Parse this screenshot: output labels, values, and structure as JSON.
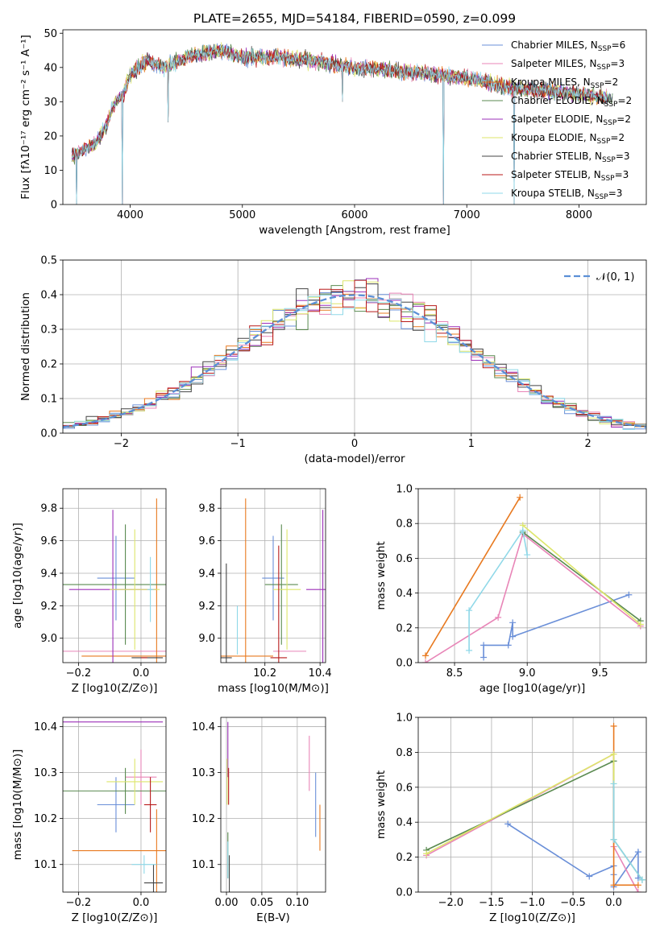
{
  "chart_data": [
    {
      "id": "spectrum",
      "type": "line",
      "title": "PLATE=2655, MJD=54184, FIBERID=0590, z=0.099",
      "xlabel": "wavelength [Angstrom, rest frame]",
      "ylabel": "Flux [fλ10⁻¹⁷ erg cm⁻² s⁻¹ A⁻¹]",
      "xlim": [
        3400,
        8600
      ],
      "ylim": [
        0,
        51
      ],
      "xticks": [
        4000,
        5000,
        6000,
        7000,
        8000
      ],
      "yticks": [
        0,
        10,
        20,
        30,
        40,
        50
      ],
      "grid": false,
      "legend_position": "top-right",
      "continuum_shape": {
        "x": [
          3480,
          3600,
          3700,
          3800,
          3850,
          3950,
          4000,
          4150,
          4300,
          4500,
          4800,
          5000,
          5300,
          5600,
          6000,
          6400,
          6700,
          7000,
          7400,
          7800,
          8300
        ],
        "y": [
          14,
          16,
          18,
          24,
          29,
          33,
          38,
          42,
          40,
          43,
          45,
          43,
          43,
          42,
          40,
          39,
          38,
          37,
          34,
          33,
          31
        ]
      },
      "absorption_dips": [
        {
          "x": 3930,
          "y": 0
        },
        {
          "x": 6790,
          "y": 0
        },
        {
          "x": 7420,
          "y": 0
        },
        {
          "x": 3520,
          "y": 0
        },
        {
          "x": 4340,
          "y": 24
        },
        {
          "x": 5890,
          "y": 30
        }
      ],
      "series": [
        {
          "name": "Chabrier MILES, N_SSP=6",
          "color": "#6a8fd8"
        },
        {
          "name": "Salpeter MILES, N_SSP=3",
          "color": "#e885b7"
        },
        {
          "name": "Kroupa MILES, N_SSP=2",
          "color": "#e8791f"
        },
        {
          "name": "Chabrier ELODIE, N_SSP=2",
          "color": "#5a8a50"
        },
        {
          "name": "Salpeter ELODIE, N_SSP=2",
          "color": "#9b2fb8"
        },
        {
          "name": "Kroupa ELODIE, N_SSP=2",
          "color": "#dde66a"
        },
        {
          "name": "Chabrier STELIB, N_SSP=3",
          "color": "#444444"
        },
        {
          "name": "Salpeter STELIB, N_SSP=3",
          "color": "#b81a1a"
        },
        {
          "name": "Kroupa STELIB, N_SSP=3",
          "color": "#8fd8e8"
        }
      ]
    },
    {
      "id": "residuals",
      "type": "line",
      "xlabel": "(data-model)/error",
      "ylabel": "Normed distribution",
      "xlim": [
        -2.5,
        2.5
      ],
      "ylim": [
        0,
        0.5
      ],
      "xticks": [
        -2,
        -1,
        0,
        1,
        2
      ],
      "yticks": [
        0.0,
        0.1,
        0.2,
        0.3,
        0.4,
        0.5
      ],
      "grid": true,
      "legend_position": "top-right",
      "legend": "𝒩(0, 1)",
      "bin_width": 0.1,
      "note_series_colors": "same order as spectrum legend"
    },
    {
      "id": "age_vs_Z",
      "type": "scatter",
      "xlabel": "Z [log10(Z/Z⊙)]",
      "ylabel": "age  [log10(age/yr)]",
      "xlim": [
        -0.25,
        0.08
      ],
      "ylim": [
        8.85,
        9.92
      ],
      "xticks": [
        -0.2,
        0.0
      ],
      "yticks": [
        9.0,
        9.2,
        9.4,
        9.6,
        9.8
      ],
      "grid": true,
      "points": [
        {
          "series": 0,
          "x": -0.08,
          "y": 9.37,
          "xerr": 0.06,
          "yerr": 0.26
        },
        {
          "series": 1,
          "x": 0.0,
          "y": 8.92,
          "xerr": 0.25,
          "yerr": 0.0
        },
        {
          "series": 2,
          "x": 0.05,
          "y": 8.89,
          "xerr": 0.24,
          "yerr": 0.97
        },
        {
          "series": 3,
          "x": -0.05,
          "y": 9.33,
          "xerr": 0.25,
          "yerr": 0.37
        },
        {
          "series": 4,
          "x": -0.09,
          "y": 9.3,
          "xerr": 0.14,
          "yerr": 0.49
        },
        {
          "series": 5,
          "x": -0.02,
          "y": 9.3,
          "xerr": 0.08,
          "yerr": 0.37
        },
        {
          "series": 6,
          "x": 0.02,
          "y": 8.88,
          "xerr": 0.05,
          "yerr": 0.0
        },
        {
          "series": 7,
          "x": 0.01,
          "y": 8.88,
          "xerr": 0.01,
          "yerr": 0.0
        },
        {
          "series": 8,
          "x": 0.03,
          "y": 9.3,
          "xerr": 0.01,
          "yerr": 0.2
        }
      ]
    },
    {
      "id": "age_vs_mass",
      "type": "scatter",
      "xlabel": "mass [log10(M/M⊙)]",
      "ylabel": "",
      "xlim": [
        10.04,
        10.42
      ],
      "ylim": [
        8.85,
        9.92
      ],
      "xticks": [
        10.2,
        10.4
      ],
      "yticks": [
        9.0,
        9.2,
        9.4,
        9.6,
        9.8
      ],
      "grid": true,
      "points": [
        {
          "series": 0,
          "x": 10.23,
          "y": 9.37,
          "xerr": 0.04,
          "yerr": 0.26
        },
        {
          "series": 1,
          "x": 10.29,
          "y": 8.92,
          "xerr": 0.06,
          "yerr": 0.0
        },
        {
          "series": 2,
          "x": 10.13,
          "y": 8.89,
          "xerr": 0.1,
          "yerr": 0.97
        },
        {
          "series": 3,
          "x": 10.26,
          "y": 9.33,
          "xerr": 0.06,
          "yerr": 0.37
        },
        {
          "series": 4,
          "x": 10.41,
          "y": 9.3,
          "xerr": 0.06,
          "yerr": 0.49
        },
        {
          "series": 5,
          "x": 10.28,
          "y": 9.3,
          "xerr": 0.05,
          "yerr": 0.37
        },
        {
          "series": 6,
          "x": 10.06,
          "y": 8.88,
          "xerr": 0.02,
          "yerr": 0.58
        },
        {
          "series": 7,
          "x": 10.25,
          "y": 8.88,
          "xerr": 0.03,
          "yerr": 0.69
        },
        {
          "series": 8,
          "x": 10.1,
          "y": 9.05,
          "xerr": 0.0,
          "yerr": 0.15
        }
      ]
    },
    {
      "id": "weight_vs_age",
      "type": "line",
      "xlabel": "age  [log10(age/yr)]",
      "ylabel": "mass weight",
      "xlim": [
        8.25,
        9.82
      ],
      "ylim": [
        0,
        1.0
      ],
      "xticks": [
        8.5,
        9.0,
        9.5
      ],
      "yticks": [
        0.0,
        0.2,
        0.4,
        0.6,
        0.8,
        1.0
      ],
      "grid": true,
      "lines": [
        {
          "series": 0,
          "x": [
            8.7,
            8.7,
            8.87,
            8.9,
            8.9,
            9.7
          ],
          "y": [
            0.03,
            0.1,
            0.1,
            0.23,
            0.15,
            0.39
          ]
        },
        {
          "series": 1,
          "x": [
            8.3,
            8.8,
            8.97,
            9.78
          ],
          "y": [
            0.0,
            0.26,
            0.74,
            0.21
          ]
        },
        {
          "series": 2,
          "x": [
            8.3,
            8.95
          ],
          "y": [
            0.04,
            0.95
          ]
        },
        {
          "series": 3,
          "x": [
            8.97,
            9.78
          ],
          "y": [
            0.75,
            0.24
          ]
        },
        {
          "series": 5,
          "x": [
            8.97,
            9.78
          ],
          "y": [
            0.79,
            0.22
          ]
        },
        {
          "series": 8,
          "x": [
            8.6,
            8.6,
            8.97,
            9.0
          ],
          "y": [
            0.07,
            0.3,
            0.76,
            0.62
          ]
        }
      ]
    },
    {
      "id": "mass_vs_Z",
      "type": "scatter",
      "xlabel": "Z [log10(Z/Z⊙)]",
      "ylabel": "mass [log10(M/M⊙)]",
      "xlim": [
        -0.25,
        0.08
      ],
      "ylim": [
        10.04,
        10.42
      ],
      "xticks": [
        -0.2,
        0.0
      ],
      "yticks": [
        10.1,
        10.2,
        10.3,
        10.4
      ],
      "grid": true,
      "points": [
        {
          "series": 0,
          "x": -0.08,
          "y": 10.23,
          "xerr": 0.06,
          "yerr": 0.06
        },
        {
          "series": 1,
          "x": 0.0,
          "y": 10.29,
          "xerr": 0.05,
          "yerr": 0.06
        },
        {
          "series": 2,
          "x": 0.05,
          "y": 10.13,
          "xerr": 0.27,
          "yerr": 0.09
        },
        {
          "series": 3,
          "x": -0.05,
          "y": 10.26,
          "xerr": 0.25,
          "yerr": 0.05
        },
        {
          "series": 4,
          "x": -0.09,
          "y": 10.41,
          "xerr": 0.16,
          "yerr": 0.0
        },
        {
          "series": 5,
          "x": -0.02,
          "y": 10.28,
          "xerr": 0.09,
          "yerr": 0.05
        },
        {
          "series": 6,
          "x": 0.04,
          "y": 10.06,
          "xerr": 0.03,
          "yerr": 0.04
        },
        {
          "series": 7,
          "x": 0.03,
          "y": 10.23,
          "xerr": 0.02,
          "yerr": 0.06
        },
        {
          "series": 8,
          "x": 0.01,
          "y": 10.1,
          "xerr": 0.04,
          "yerr": 0.02
        }
      ]
    },
    {
      "id": "mass_vs_EBV",
      "type": "scatter",
      "xlabel": "E(B-V)",
      "ylabel": "",
      "xlim": [
        -0.008,
        0.14
      ],
      "ylim": [
        10.04,
        10.42
      ],
      "xticks": [
        0.0,
        0.05,
        0.1
      ],
      "yticks": [
        10.1,
        10.2,
        10.3,
        10.4
      ],
      "grid": true,
      "points": [
        {
          "series": 0,
          "x": 0.126,
          "y": 10.23,
          "xerr": 0.0,
          "yerr": 0.07
        },
        {
          "series": 1,
          "x": 0.117,
          "y": 10.32,
          "xerr": 0.0,
          "yerr": 0.06
        },
        {
          "series": 2,
          "x": 0.132,
          "y": 10.18,
          "xerr": 0.0,
          "yerr": 0.05
        },
        {
          "series": 3,
          "x": 0.002,
          "y": 10.12,
          "xerr": 0.0,
          "yerr": 0.05
        },
        {
          "series": 4,
          "x": 0.002,
          "y": 10.35,
          "xerr": 0.0,
          "yerr": 0.06
        },
        {
          "series": 5,
          "x": 0.001,
          "y": 10.28,
          "xerr": 0.0,
          "yerr": 0.05
        },
        {
          "series": 6,
          "x": 0.004,
          "y": 10.08,
          "xerr": 0.0,
          "yerr": 0.04
        },
        {
          "series": 7,
          "x": 0.003,
          "y": 10.27,
          "xerr": 0.0,
          "yerr": 0.04
        },
        {
          "series": 8,
          "x": 0.002,
          "y": 10.11,
          "xerr": 0.0,
          "yerr": 0.04
        }
      ]
    },
    {
      "id": "weight_vs_Z",
      "type": "line",
      "xlabel": "Z [log10(Z/Z⊙)]",
      "ylabel": "mass weight",
      "xlim": [
        -2.4,
        0.4
      ],
      "ylim": [
        0,
        1.0
      ],
      "xticks": [
        -2.0,
        -1.5,
        -1.0,
        -0.5,
        0.0
      ],
      "yticks": [
        0.0,
        0.2,
        0.4,
        0.6,
        0.8,
        1.0
      ],
      "grid": true,
      "lines": [
        {
          "series": 0,
          "x": [
            -1.3,
            -0.3,
            0.0,
            0.0,
            0.0,
            0.3,
            0.3
          ],
          "y": [
            0.39,
            0.09,
            0.15,
            0.1,
            0.03,
            0.23,
            0.08
          ]
        },
        {
          "series": 1,
          "x": [
            -2.3,
            0.0,
            0.0,
            0.3
          ],
          "y": [
            0.21,
            0.79,
            0.26,
            0.0
          ]
        },
        {
          "series": 2,
          "x": [
            0.0,
            0.0,
            0.3
          ],
          "y": [
            0.95,
            0.04,
            0.04
          ]
        },
        {
          "series": 3,
          "x": [
            -2.3,
            0.0,
            0.0,
            0.35
          ],
          "y": [
            0.24,
            0.75,
            0.3,
            0.07
          ]
        },
        {
          "series": 5,
          "x": [
            -2.3,
            0.0,
            0.0
          ],
          "y": [
            0.22,
            0.79,
            0.62
          ]
        },
        {
          "series": 8,
          "x": [
            0.0,
            0.0,
            0.35
          ],
          "y": [
            0.62,
            0.3,
            0.07
          ]
        }
      ]
    }
  ]
}
